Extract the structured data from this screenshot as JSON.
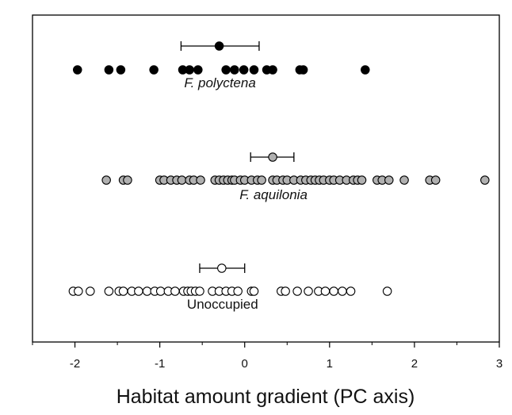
{
  "chart_data": {
    "type": "scatter",
    "title": "",
    "xlabel": "Habitat amount gradient (PC axis)",
    "ylabel": "",
    "xlim": [
      -2.5,
      3.0
    ],
    "xticks": [
      -2,
      -1,
      0,
      1,
      2,
      3
    ],
    "grid": false,
    "legend": "none",
    "series": [
      {
        "name": "F. polyctena",
        "label_italic": true,
        "color": "#000000",
        "mean": -0.3,
        "ci": [
          -0.75,
          0.17
        ],
        "values": [
          -1.97,
          -1.6,
          -1.46,
          -1.07,
          -0.73,
          -0.65,
          -0.55,
          -0.22,
          -0.12,
          -0.01,
          0.11,
          0.26,
          0.33,
          0.65,
          0.69,
          1.42
        ]
      },
      {
        "name": "F. aquilonia",
        "label_italic": true,
        "color": "#b0b0b0",
        "mean": 0.33,
        "ci": [
          0.07,
          0.58
        ],
        "values": [
          -1.63,
          -1.43,
          -1.38,
          -1.0,
          -0.95,
          -0.87,
          -0.8,
          -0.74,
          -0.65,
          -0.6,
          -0.52,
          -0.35,
          -0.3,
          -0.25,
          -0.2,
          -0.15,
          -0.12,
          -0.05,
          0.0,
          0.08,
          0.15,
          0.2,
          0.33,
          0.38,
          0.45,
          0.5,
          0.58,
          0.66,
          0.72,
          0.78,
          0.83,
          0.88,
          0.93,
          1.0,
          1.05,
          1.12,
          1.2,
          1.28,
          1.33,
          1.38,
          1.56,
          1.62,
          1.7,
          1.88,
          2.18,
          2.25,
          2.83
        ]
      },
      {
        "name": "Unoccupied",
        "label_italic": false,
        "color": "#ffffff",
        "mean": -0.27,
        "ci": [
          -0.53,
          0.0
        ],
        "values": [
          -2.02,
          -1.96,
          -1.82,
          -1.6,
          -1.48,
          -1.43,
          -1.33,
          -1.25,
          -1.15,
          -1.06,
          -0.99,
          -0.9,
          -0.82,
          -0.72,
          -0.67,
          -0.63,
          -0.58,
          -0.53,
          -0.38,
          -0.3,
          -0.22,
          -0.15,
          -0.08,
          0.08,
          0.11,
          0.43,
          0.48,
          0.62,
          0.75,
          0.87,
          0.95,
          1.05,
          1.15,
          1.25,
          1.68
        ]
      }
    ]
  }
}
